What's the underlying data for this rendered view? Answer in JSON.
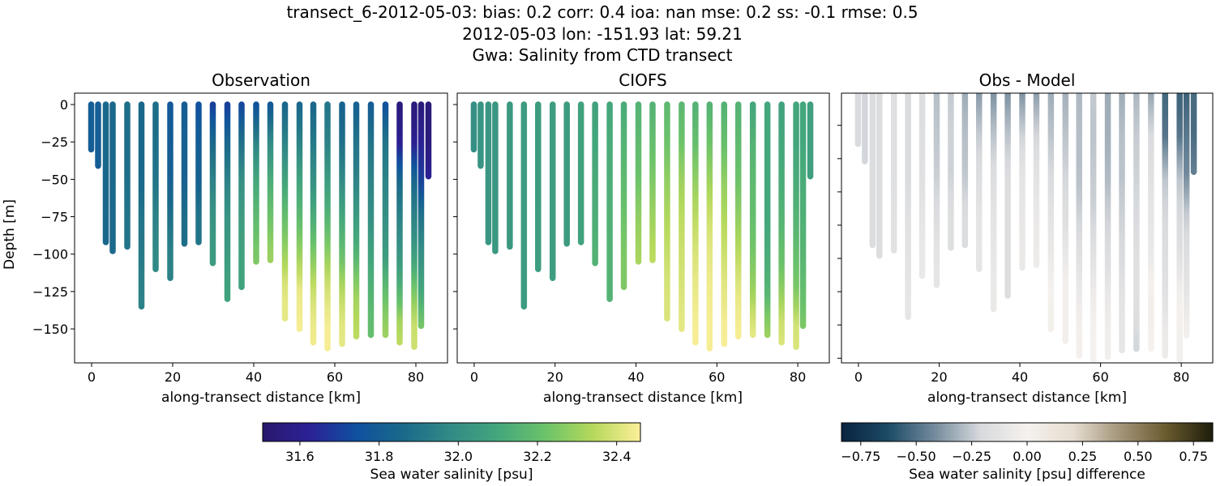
{
  "title_lines": [
    "transect_6-2012-05-03: bias: 0.2  corr: 0.4  ioa: nan  mse: 0.2  ss: -0.1  rmse: 0.5",
    "2012-05-03 lon: -151.93 lat: 59.21",
    "Gwa: Salinity from CTD transect"
  ],
  "chart_data": [
    {
      "type": "scatter",
      "title": "Observation",
      "xlabel": "along-transect distance [km]",
      "ylabel": "Depth [m]",
      "xlim": [
        -4.2,
        87.8
      ],
      "ylim": [
        -172.7,
        7.6
      ],
      "xticks": [
        0,
        20,
        40,
        60,
        80
      ],
      "yticks": [
        0,
        -25,
        -50,
        -75,
        -100,
        -125,
        -150
      ],
      "colorbar": "salinity"
    },
    {
      "type": "scatter",
      "title": "CIOFS",
      "xlabel": "along-transect distance [km]",
      "xlim": [
        -4.2,
        87.8
      ],
      "ylim": [
        -172.7,
        7.6
      ],
      "xticks": [
        0,
        20,
        40,
        60,
        80
      ],
      "yticks": [
        0,
        -25,
        -50,
        -75,
        -100,
        -125,
        -150
      ],
      "colorbar": "salinity"
    },
    {
      "type": "scatter",
      "title": "Obs - Model",
      "xlabel": "along-transect distance [km]",
      "xlim": [
        -4.2,
        87.8
      ],
      "ylim": [
        -203.5,
        -0.8
      ],
      "xticks": [
        0,
        20,
        40,
        60,
        80
      ],
      "yticks": [
        -25,
        -50,
        -75,
        -100,
        -125,
        -150,
        -175,
        -200
      ],
      "colorbar": "difference"
    }
  ],
  "casts": {
    "profile_depth_step": 25,
    "distance_km": [
      -0.1,
      1.6,
      3.5,
      5.2,
      8.8,
      12.3,
      15.8,
      19.4,
      22.9,
      26.4,
      29.9,
      33.5,
      37.0,
      40.6,
      44.1,
      47.7,
      51.3,
      54.7,
      58.2,
      61.8,
      65.3,
      68.9,
      72.5,
      76.0,
      79.6,
      81.3,
      83.1
    ],
    "max_depth_m": [
      30,
      41,
      92,
      98,
      95,
      135,
      110,
      116,
      93,
      92,
      106,
      130,
      122,
      105,
      104,
      143,
      150,
      159,
      163,
      160,
      155,
      154,
      154,
      159,
      162,
      148,
      48
    ],
    "diff_panel_max_depth_m": [
      39,
      52,
      115,
      123,
      119,
      169,
      138,
      145,
      117,
      115,
      133,
      163,
      153,
      132,
      130,
      178,
      187,
      198,
      201,
      199,
      194,
      193,
      193,
      198,
      201,
      183,
      60
    ],
    "observation_salinity": [
      [
        31.8,
        31.8
      ],
      [
        31.8,
        31.8
      ],
      [
        31.85,
        31.85,
        31.85,
        31.85
      ],
      [
        31.85,
        31.85,
        31.85,
        31.86
      ],
      [
        31.88,
        31.88,
        31.88,
        31.9
      ],
      [
        31.85,
        31.85,
        31.85,
        31.9,
        31.92,
        31.95
      ],
      [
        31.88,
        31.88,
        31.9,
        31.95,
        31.98
      ],
      [
        31.78,
        31.8,
        31.82,
        31.88,
        31.95
      ],
      [
        31.8,
        31.82,
        31.82,
        31.88
      ],
      [
        31.75,
        31.8,
        31.82,
        31.9
      ],
      [
        31.7,
        31.85,
        31.95,
        32.02,
        32.05
      ],
      [
        31.7,
        31.85,
        31.95,
        32.02,
        32.05,
        32.08
      ],
      [
        31.72,
        31.88,
        32.0,
        32.05,
        32.08
      ],
      [
        31.75,
        31.95,
        32.1,
        32.18,
        32.25
      ],
      [
        31.78,
        31.98,
        32.12,
        32.22,
        32.3
      ],
      [
        31.85,
        31.95,
        32.08,
        32.2,
        32.3,
        32.42
      ],
      [
        31.85,
        31.95,
        32.08,
        32.18,
        32.3,
        32.43,
        32.45
      ],
      [
        31.85,
        31.92,
        32.0,
        32.12,
        32.25,
        32.38,
        32.44
      ],
      [
        31.9,
        31.95,
        32.05,
        32.15,
        32.28,
        32.4,
        32.45
      ],
      [
        31.82,
        31.88,
        31.98,
        32.1,
        32.2,
        32.35,
        32.42
      ],
      [
        31.82,
        31.9,
        31.95,
        32.05,
        32.15,
        32.3,
        32.35
      ],
      [
        31.8,
        31.9,
        31.95,
        32.0,
        32.08,
        32.15,
        32.2
      ],
      [
        31.75,
        31.9,
        31.95,
        32.0,
        32.05,
        32.2,
        32.3
      ],
      [
        31.55,
        31.6,
        31.85,
        31.95,
        32.02,
        32.15,
        32.35
      ],
      [
        31.55,
        31.6,
        31.85,
        31.95,
        32.05,
        32.25,
        32.38
      ],
      [
        31.55,
        31.62,
        31.7,
        31.9,
        32.0,
        32.1,
        32.25
      ],
      [
        31.55,
        31.55,
        31.62
      ]
    ],
    "model_salinity": [
      [
        32.0,
        32.0
      ],
      [
        32.02,
        32.02
      ],
      [
        32.03,
        32.03,
        32.03,
        32.03
      ],
      [
        32.03,
        32.03,
        32.03,
        32.04
      ],
      [
        32.04,
        32.04,
        32.04,
        32.04
      ],
      [
        32.05,
        32.05,
        32.05,
        32.05,
        32.05,
        32.05
      ],
      [
        32.05,
        32.05,
        32.05,
        32.06,
        32.06
      ],
      [
        32.06,
        32.06,
        32.06,
        32.06,
        32.06
      ],
      [
        32.05,
        32.05,
        32.05,
        32.05
      ],
      [
        32.08,
        32.08,
        32.08,
        32.08
      ],
      [
        32.08,
        32.1,
        32.12,
        32.13,
        32.15
      ],
      [
        32.1,
        32.12,
        32.13,
        32.14,
        32.15,
        32.15
      ],
      [
        32.12,
        32.15,
        32.18,
        32.22,
        32.25
      ],
      [
        32.15,
        32.18,
        32.22,
        32.28,
        32.32
      ],
      [
        32.15,
        32.2,
        32.25,
        32.3,
        32.35
      ],
      [
        32.18,
        32.22,
        32.28,
        32.33,
        32.37,
        32.4
      ],
      [
        32.17,
        32.22,
        32.3,
        32.35,
        32.38,
        32.4,
        32.42
      ],
      [
        32.15,
        32.2,
        32.28,
        32.35,
        32.4,
        32.43,
        32.45
      ],
      [
        32.15,
        32.22,
        32.3,
        32.38,
        32.42,
        32.44,
        32.45
      ],
      [
        32.15,
        32.2,
        32.28,
        32.33,
        32.38,
        32.42,
        32.45
      ],
      [
        32.15,
        32.18,
        32.22,
        32.28,
        32.35,
        32.42,
        32.45
      ],
      [
        32.1,
        32.15,
        32.18,
        32.2,
        32.24,
        32.3,
        32.42
      ],
      [
        32.1,
        32.1,
        32.1,
        32.1,
        32.12,
        32.15,
        32.3
      ],
      [
        32.08,
        32.1,
        32.12,
        32.15,
        32.2,
        32.28,
        32.4
      ],
      [
        32.1,
        32.1,
        32.12,
        32.15,
        32.2,
        32.25,
        32.4
      ],
      [
        32.1,
        32.1,
        32.12,
        32.14,
        32.16,
        32.2,
        32.25
      ],
      [
        32.07,
        32.07,
        32.07
      ]
    ]
  },
  "colorbars": {
    "salinity": {
      "label": "Sea water salinity [psu]",
      "range": [
        31.506,
        32.46
      ],
      "ticks": [
        "31.6",
        "31.8",
        "32.0",
        "32.2",
        "32.4"
      ],
      "colors": [
        "#2a186c",
        "#2b2196",
        "#0f519e",
        "#1b6a8a",
        "#338b86",
        "#44a77c",
        "#6cc36a",
        "#b6d95b",
        "#fdef9a"
      ]
    },
    "difference": {
      "label": "Sea water salinity [psu] difference",
      "range": [
        -0.837,
        0.837
      ],
      "ticks": [
        "−0.75",
        "−0.50",
        "−0.25",
        "0.00",
        "0.25",
        "0.50",
        "0.75"
      ],
      "colors": [
        "#08233f",
        "#1c4a66",
        "#738a9c",
        "#d8dadd",
        "#f5f1ee",
        "#e5ddd0",
        "#a4957a",
        "#6a5a2e",
        "#1c1d0b"
      ]
    }
  }
}
